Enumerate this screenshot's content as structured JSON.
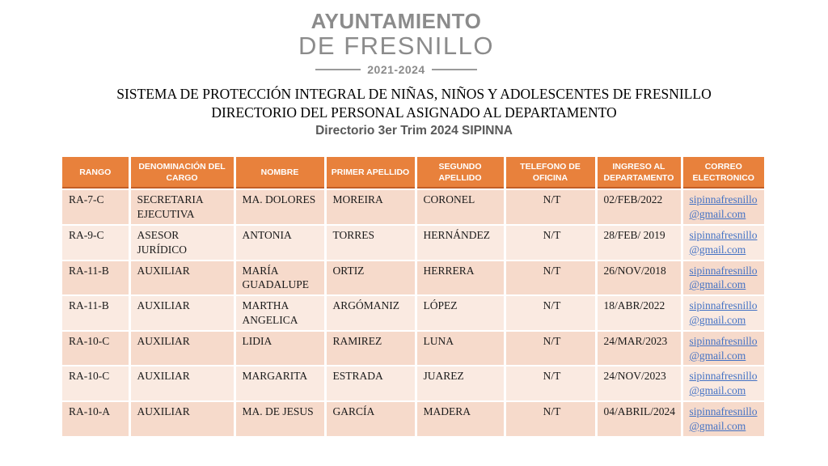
{
  "logo": {
    "line1": "AYUNTAMIENTO",
    "line2": "DE FRESNILLO",
    "years": "2021-2024"
  },
  "titles": {
    "line1": "SISTEMA DE PROTECCIÓN INTEGRAL DE NIÑAS, NIÑOS Y ADOLESCENTES DE FRESNILLO",
    "line2": "DIRECTORIO DEL PERSONAL ASIGNADO AL DEPARTAMENTO",
    "line3": "Directorio 3er Trim 2024 SIPINNA"
  },
  "table": {
    "headers": [
      "RANGO",
      "DENOMINACIÓN DEL CARGO",
      "NOMBRE",
      "PRIMER APELLIDO",
      "SEGUNDO APELLIDO",
      "TELEFONO DE OFICINA",
      "INGRESO AL DEPARTAMENTO",
      "CORREO ELECTRONICO"
    ],
    "rows": [
      [
        "RA-7-C",
        "SECRETARIA EJECUTIVA",
        "MA. DOLORES",
        "MOREIRA",
        "CORONEL",
        "N/T",
        "02/FEB/2022",
        "sipinnafresnillo@gmail.com"
      ],
      [
        "RA-9-C",
        "ASESOR JURÍDICO",
        "ANTONIA",
        "TORRES",
        "HERNÁNDEZ",
        "N/T",
        "28/FEB/ 2019",
        "sipinnafresnillo@gmail.com"
      ],
      [
        "RA-11-B",
        "AUXILIAR",
        "MARÍA GUADALUPE",
        "ORTIZ",
        "HERRERA",
        "N/T",
        "26/NOV/2018",
        "sipinnafresnillo@gmail.com"
      ],
      [
        "RA-11-B",
        "AUXILIAR",
        "MARTHA ANGELICA",
        "ARGÓMANIZ",
        "LÓPEZ",
        "N/T",
        "18/ABR/2022",
        "sipinnafresnillo@gmail.com"
      ],
      [
        "RA-10-C",
        "AUXILIAR",
        "LIDIA",
        "RAMIREZ",
        "LUNA",
        "N/T",
        "24/MAR/2023",
        "sipinnafresnillo@gmail.com"
      ],
      [
        "RA-10-C",
        "AUXILIAR",
        "MARGARITA",
        "ESTRADA",
        "JUAREZ",
        "N/T",
        "24/NOV/2023",
        "sipinnafresnillo@gmail.com"
      ],
      [
        "RA-10-A",
        "AUXILIAR",
        "MA. DE JESUS",
        "GARCÍA",
        "MADERA",
        "N/T",
        "04/ABRIL/2024",
        "sipinnafresnillo@gmail.com"
      ]
    ]
  },
  "colors": {
    "header_bg": "#E8813C",
    "header_text": "#FFFFFF",
    "header_bottom_edge": "#C25E26",
    "row_odd_bg": "#F6DACB",
    "row_even_bg": "#FAEAE1",
    "link_blue": "#4472C4",
    "logo_gray": "#8B8B8B",
    "subtitle_gray": "#595959"
  }
}
